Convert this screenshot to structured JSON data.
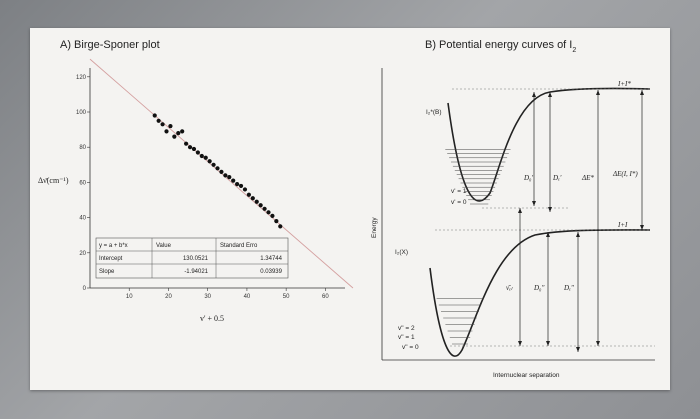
{
  "panel_a": {
    "title": "A) Birge-Sponer plot",
    "table": {
      "equation": "y = a + b*x",
      "headers": [
        "Value",
        "Standard Erro"
      ],
      "rows": [
        {
          "label": "Intercept",
          "value": "130.0521",
          "error": "1.34744"
        },
        {
          "label": "Slope",
          "value": "-1.94021",
          "error": "0.03939"
        }
      ]
    }
  },
  "panel_b": {
    "title": "B) Potential energy curves of I",
    "title_sub": "2",
    "y_axis_label": "Energy",
    "x_axis_label": "Internuclear separation",
    "labels": {
      "excited_state": "I₂*(B)",
      "ground_state": "I₂(X)",
      "top_asymptote": "I+I*",
      "mid_asymptote": "I+I",
      "v_upper": [
        "v' = 1",
        "v' = 0"
      ],
      "v_lower": [
        "v\" = 2",
        "v\" = 1",
        "v\" = 0"
      ],
      "D0_prime": "D₀'",
      "De_prime": "Dₑ'",
      "dE_star": "ΔE*",
      "dE_I": "ΔE(I, I*)",
      "nu_el": "ν̄ₑₗ",
      "D0_dbl": "D₀\"",
      "De_dbl": "Dₑ\""
    }
  },
  "chart_data": [
    {
      "type": "scatter",
      "title": "A) Birge-Sponer plot",
      "xlabel": "v' + 0.5",
      "ylabel": "Δν̄(cm⁻¹)",
      "xlim": [
        0,
        65
      ],
      "ylim": [
        0,
        125
      ],
      "xticks": [
        10,
        20,
        30,
        40,
        50,
        60
      ],
      "yticks": [
        0,
        20,
        40,
        60,
        80,
        100,
        120
      ],
      "grid": false,
      "series": [
        {
          "x": [
            16.5,
            17.5,
            18.5,
            19.5,
            20.5,
            21.5,
            22.5,
            23.5,
            24.5,
            25.5,
            26.5,
            27.5,
            28.5,
            29.5,
            30.5,
            31.5,
            32.5,
            33.5,
            34.5,
            35.5,
            36.5,
            37.5,
            38.5,
            39.5,
            40.5,
            41.5,
            42.5,
            43.5,
            44.5,
            45.5,
            46.5,
            47.5,
            48.5
          ],
          "y": [
            98,
            95,
            93,
            89,
            92,
            86,
            88,
            89,
            82,
            80,
            79,
            77,
            75,
            74,
            72,
            70,
            68,
            66,
            64,
            63,
            61,
            59,
            58,
            56,
            53,
            51,
            49,
            47,
            45,
            43,
            41,
            38,
            35
          ]
        }
      ],
      "fit": {
        "intercept": 130.0521,
        "slope": -1.94021
      }
    }
  ]
}
